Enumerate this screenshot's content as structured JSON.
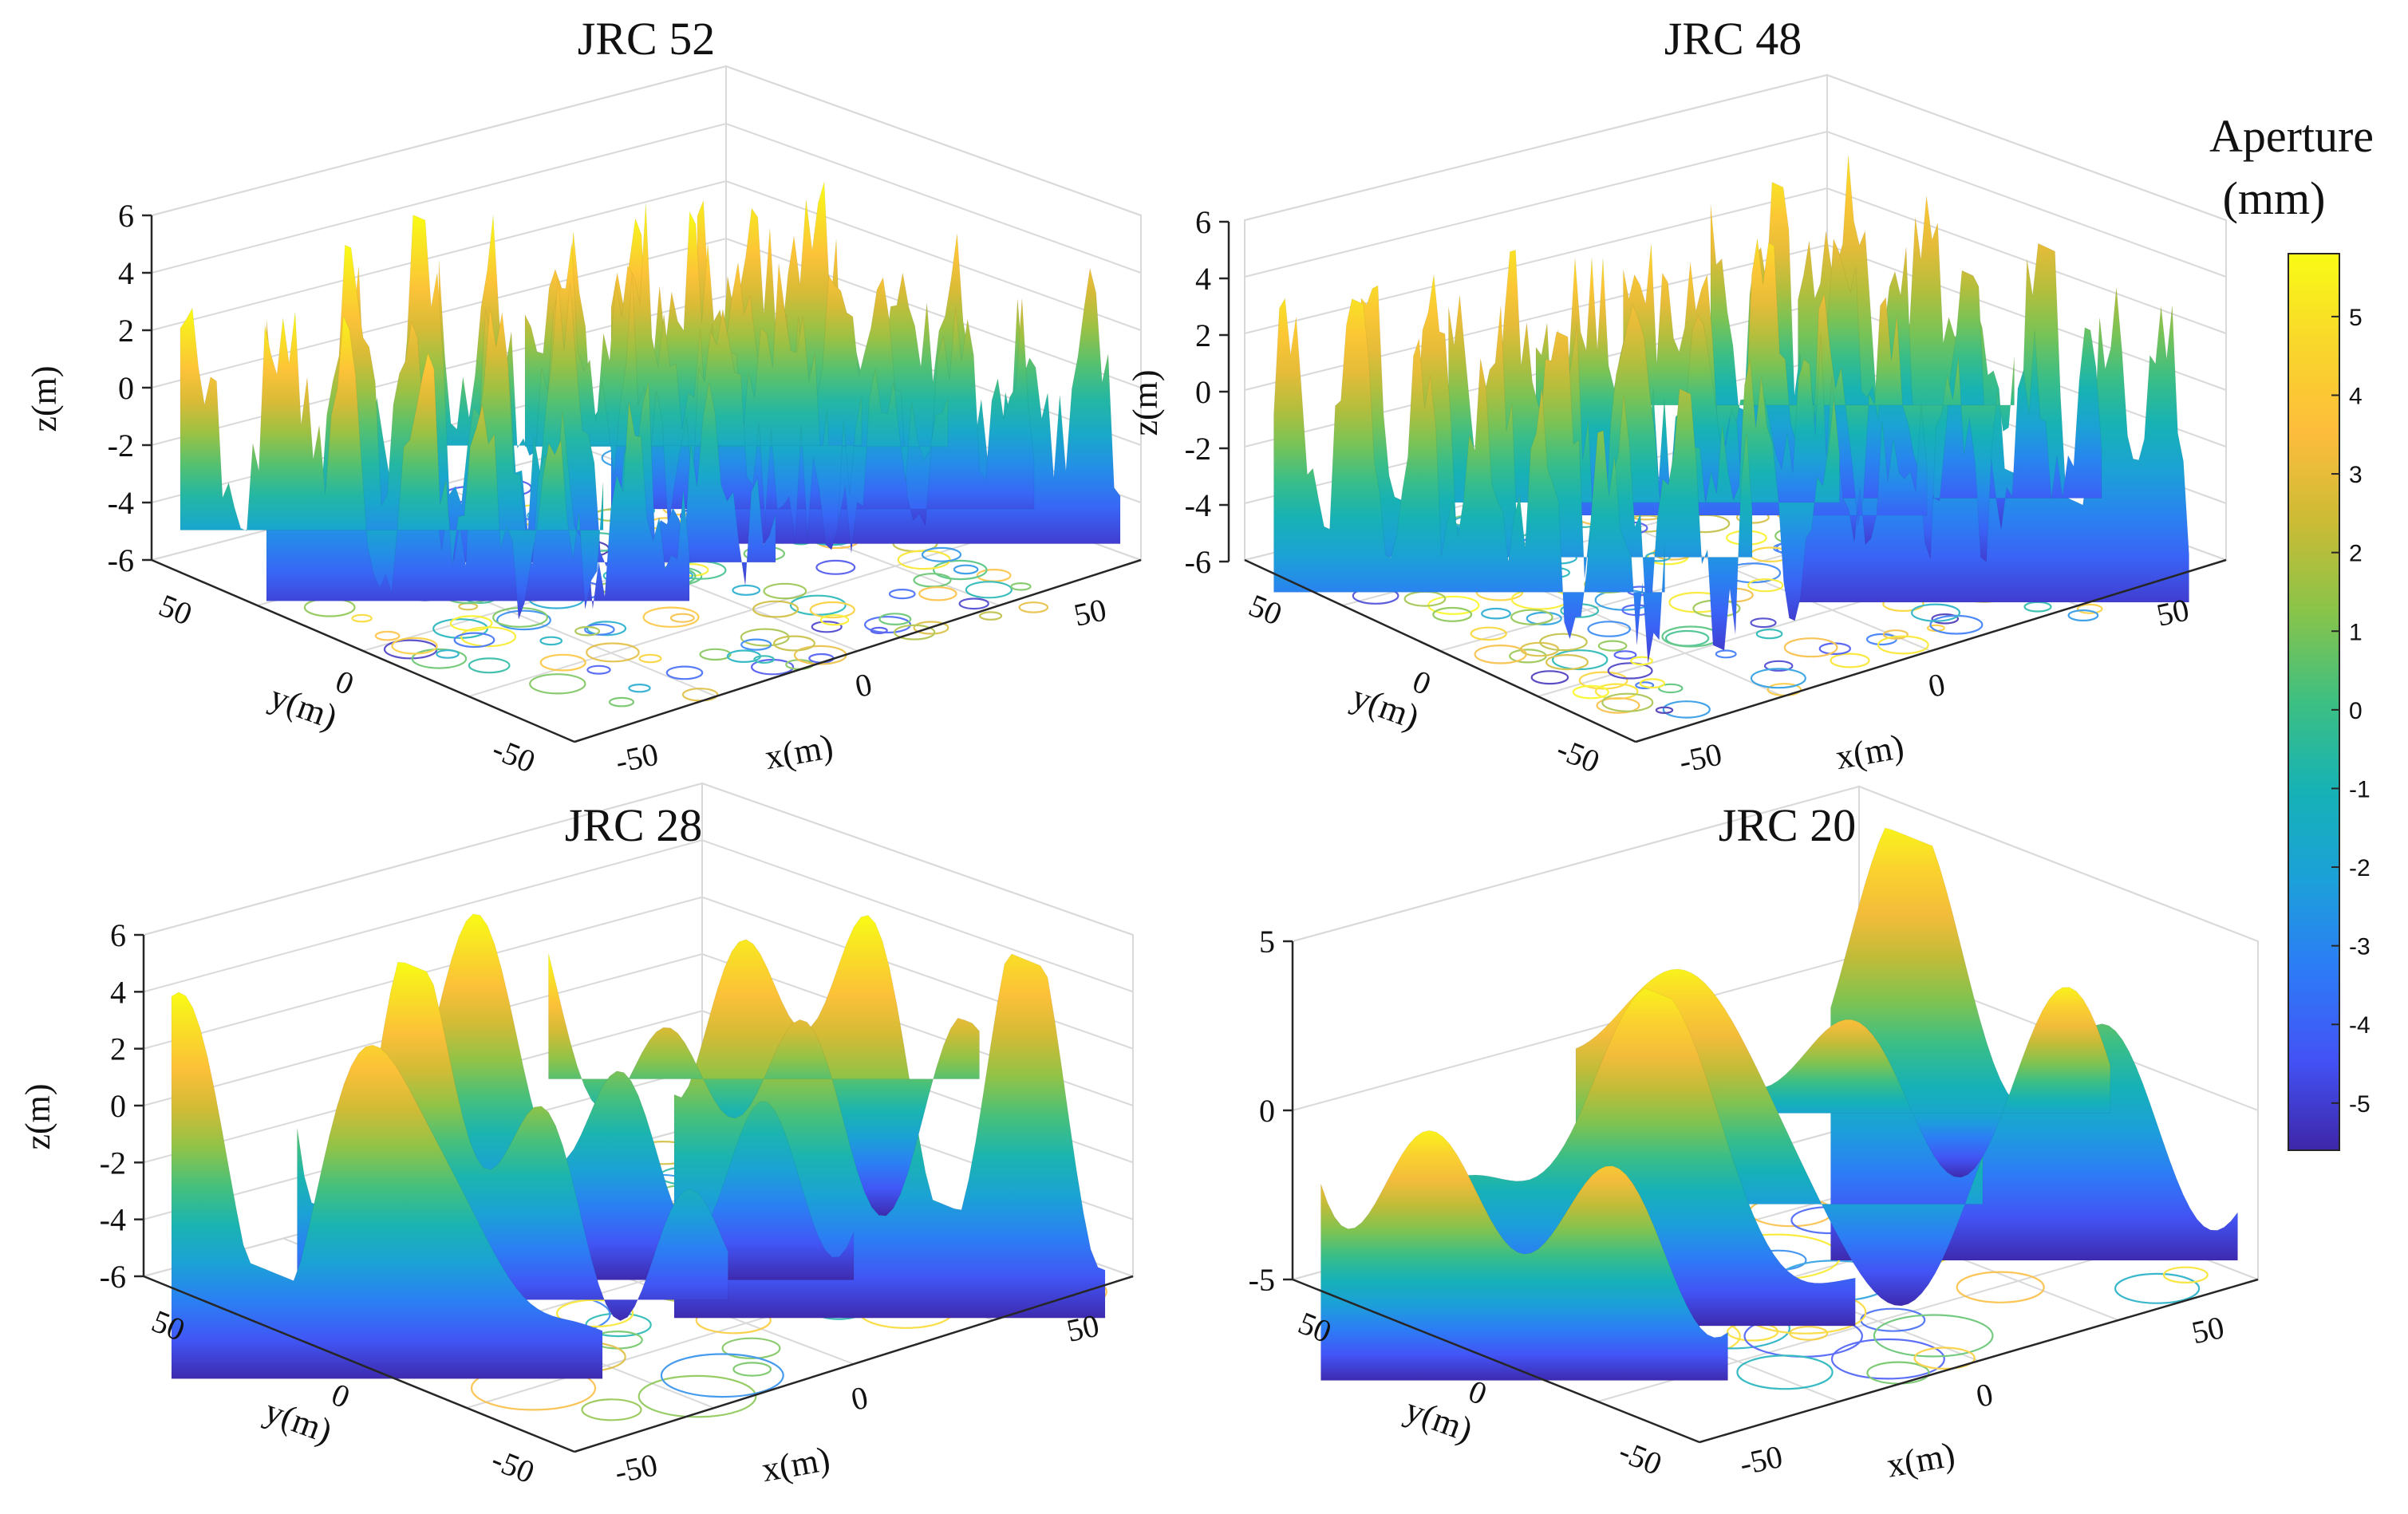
{
  "chart_data": [
    {
      "type": "surface3d",
      "title": "JRC 52",
      "xlabel": "x(m)",
      "ylabel": "y(m)",
      "zlabel": "z(m)",
      "xlim": [
        -60,
        60
      ],
      "ylim": [
        -60,
        60
      ],
      "zlim": [
        -6,
        6
      ],
      "xticks": [
        "-50",
        "0",
        "50"
      ],
      "yticks": [
        "50",
        "0",
        "-50"
      ],
      "zticks": [
        "6",
        "4",
        "2",
        "0",
        "-2",
        "-4",
        "-6"
      ],
      "roughness": "very high",
      "z_range": [
        -5,
        6
      ],
      "contour_projection": "bottom plane"
    },
    {
      "type": "surface3d",
      "title": "JRC 48",
      "xlabel": "x(m)",
      "ylabel": "y(m)",
      "zlabel": "z(m)",
      "xlim": [
        -60,
        60
      ],
      "ylim": [
        -60,
        60
      ],
      "zlim": [
        -6,
        6
      ],
      "xticks": [
        "-50",
        "0",
        "50"
      ],
      "yticks": [
        "50",
        "0",
        "-50"
      ],
      "zticks": [
        "6",
        "4",
        "2",
        "0",
        "-2",
        "-4",
        "-6"
      ],
      "roughness": "high",
      "z_range": [
        -5,
        5
      ],
      "contour_projection": "bottom plane"
    },
    {
      "type": "surface3d",
      "title": "JRC 28",
      "xlabel": "x(m)",
      "ylabel": "y(m)",
      "zlabel": "z(m)",
      "xlim": [
        -60,
        60
      ],
      "ylim": [
        -60,
        60
      ],
      "zlim": [
        -6,
        6
      ],
      "xticks": [
        "-50",
        "0",
        "50"
      ],
      "yticks": [
        "50",
        "0",
        "-50"
      ],
      "zticks": [
        "6",
        "4",
        "2",
        "0",
        "-2",
        "-4",
        "-6"
      ],
      "roughness": "medium",
      "z_range": [
        -5.5,
        6
      ],
      "contour_projection": "bottom plane"
    },
    {
      "type": "surface3d",
      "title": "JRC 20",
      "xlabel": "x(m)",
      "ylabel": "y(m)",
      "zlabel": "",
      "xlim": [
        -60,
        60
      ],
      "ylim": [
        -60,
        60
      ],
      "zlim": [
        -5,
        5
      ],
      "xticks": [
        "-50",
        "0",
        "50"
      ],
      "yticks": [
        "50",
        "0",
        "-50"
      ],
      "zticks": [
        "5",
        "0",
        "-5"
      ],
      "roughness": "low",
      "z_range": [
        -5.5,
        5.5
      ],
      "contour_projection": "bottom plane"
    }
  ],
  "colorbar": {
    "title_line1": "Aperture",
    "title_line2": "(mm)",
    "ticks": [
      "5",
      "4",
      "3",
      "2",
      "1",
      "0",
      "-1",
      "-2",
      "-3",
      "-4",
      "-5"
    ],
    "range": [
      -5.6,
      5.8
    ],
    "colormap": "parula",
    "colors": [
      "#3e26a8",
      "#4352f5",
      "#2d7bf7",
      "#1ca0d9",
      "#16b2b6",
      "#3dbf82",
      "#88c44a",
      "#cbbb35",
      "#fdbc3c",
      "#f9d72b",
      "#f9fb15"
    ]
  }
}
